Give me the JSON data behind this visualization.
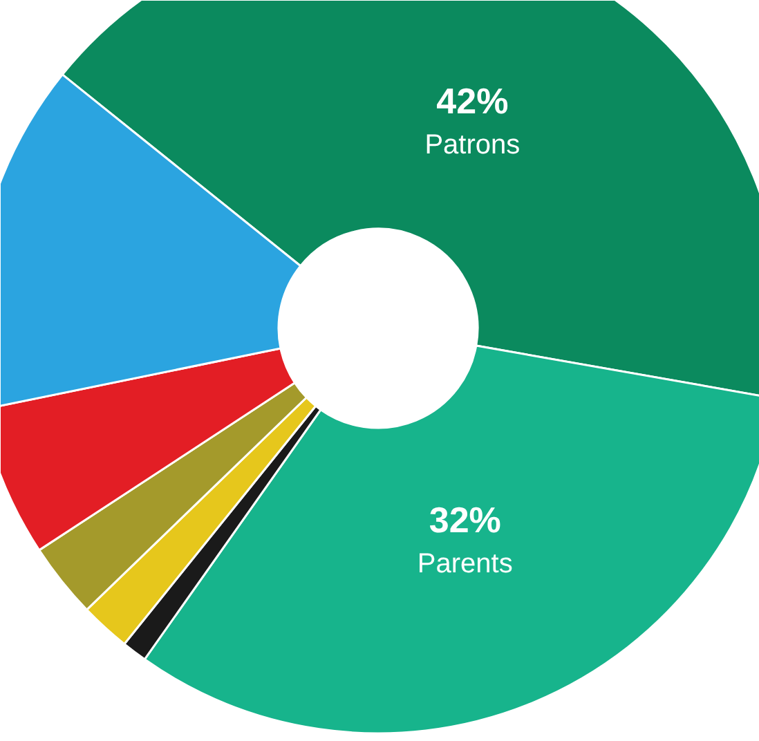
{
  "chart_data": {
    "type": "donut",
    "categories": [
      "Patrons",
      "Parents",
      null,
      null,
      null,
      null,
      null
    ],
    "values": [
      42,
      32,
      1,
      2,
      3,
      6,
      14
    ],
    "colors": [
      "#0b8a5e",
      "#17b48c",
      "#1a1a1a",
      "#e6c71c",
      "#a49a2b",
      "#e31e25",
      "#2ba4e0"
    ],
    "value_labels": [
      "42%",
      "32%",
      null,
      null,
      null,
      null,
      null
    ]
  }
}
